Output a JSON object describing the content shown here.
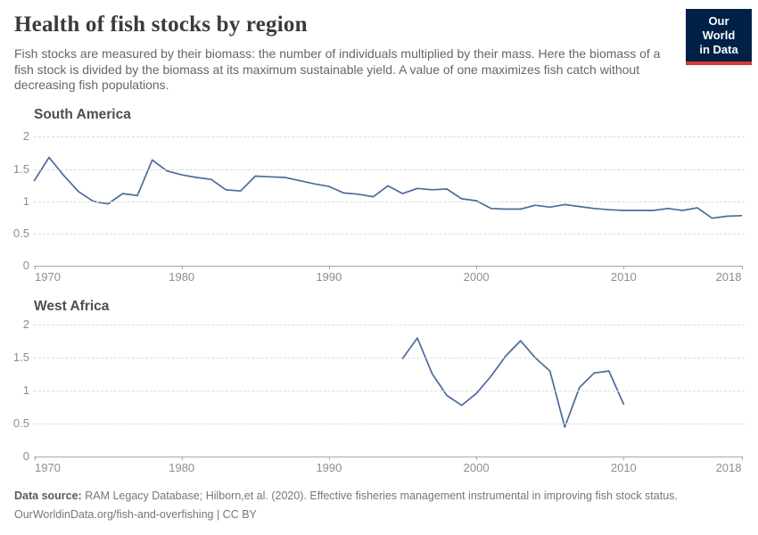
{
  "header": {
    "title": "Health of fish stocks by region",
    "subtitle": "Fish stocks are measured by their biomass: the number of individuals multiplied by their mass. Here the biomass of a fish stock is divided by the biomass at its maximum sustainable yield. A value of one maximizes fish catch without decreasing fish populations.",
    "logo": {
      "line1": "Our World",
      "line2": "in Data",
      "bg_color": "#002147",
      "accent_color": "#d73b33"
    }
  },
  "footer": {
    "datasource_label": "Data source:",
    "datasource_text": " RAM Legacy Database; Hilborn,et al. (2020). Effective fisheries management instrumental in improving fish stock status.",
    "link_line": "OurWorldinData.org/fish-and-overfishing | CC BY"
  },
  "chart_data": [
    {
      "type": "line",
      "title": "South America",
      "ylabel": "",
      "xlabel": "",
      "xlim": [
        1970,
        2018
      ],
      "ylim": [
        0,
        2
      ],
      "grid": "dashed-horizontal",
      "legend": "none",
      "line_color": "#4c6a9c",
      "yticks": [
        {
          "label": "2",
          "value": 2
        },
        {
          "label": "1.5",
          "value": 1.5
        },
        {
          "label": "1",
          "value": 1
        },
        {
          "label": "0.5",
          "value": 0.5
        },
        {
          "label": "0",
          "value": 0
        }
      ],
      "xticks": [
        {
          "label": "1970",
          "value": 1970
        },
        {
          "label": "1980",
          "value": 1980
        },
        {
          "label": "1990",
          "value": 1990
        },
        {
          "label": "2000",
          "value": 2000
        },
        {
          "label": "2010",
          "value": 2010
        },
        {
          "label": "2018",
          "value": 2018
        }
      ],
      "x": [
        1970,
        1971,
        1972,
        1973,
        1974,
        1975,
        1976,
        1977,
        1978,
        1979,
        1980,
        1981,
        1982,
        1983,
        1984,
        1985,
        1986,
        1987,
        1988,
        1989,
        1990,
        1991,
        1992,
        1993,
        1994,
        1995,
        1996,
        1997,
        1998,
        1999,
        2000,
        2001,
        2002,
        2003,
        2004,
        2005,
        2006,
        2007,
        2008,
        2009,
        2010,
        2011,
        2012,
        2013,
        2014,
        2015,
        2016,
        2017,
        2018
      ],
      "values": [
        1.32,
        1.68,
        1.4,
        1.15,
        1.0,
        0.96,
        1.12,
        1.09,
        1.64,
        1.47,
        1.41,
        1.37,
        1.34,
        1.18,
        1.16,
        1.39,
        1.38,
        1.37,
        1.32,
        1.27,
        1.23,
        1.13,
        1.11,
        1.07,
        1.24,
        1.12,
        1.2,
        1.18,
        1.19,
        1.04,
        1.01,
        0.89,
        0.88,
        0.88,
        0.94,
        0.91,
        0.95,
        0.92,
        0.89,
        0.87,
        0.86,
        0.86,
        0.86,
        0.89,
        0.86,
        0.9,
        0.74,
        0.77,
        0.78
      ]
    },
    {
      "type": "line",
      "title": "West Africa",
      "ylabel": "",
      "xlabel": "",
      "xlim": [
        1970,
        2018
      ],
      "ylim": [
        0,
        2
      ],
      "grid": "dashed-horizontal",
      "legend": "none",
      "line_color": "#4c6a9c",
      "yticks": [
        {
          "label": "2",
          "value": 2
        },
        {
          "label": "1.5",
          "value": 1.5
        },
        {
          "label": "1",
          "value": 1
        },
        {
          "label": "0.5",
          "value": 0.5
        },
        {
          "label": "0",
          "value": 0
        }
      ],
      "xticks": [
        {
          "label": "1970",
          "value": 1970
        },
        {
          "label": "1980",
          "value": 1980
        },
        {
          "label": "1990",
          "value": 1990
        },
        {
          "label": "2000",
          "value": 2000
        },
        {
          "label": "2010",
          "value": 2010
        },
        {
          "label": "2018",
          "value": 2018
        }
      ],
      "x": [
        1995,
        1996,
        1997,
        1998,
        1999,
        2000,
        2001,
        2002,
        2003,
        2004,
        2005,
        2006,
        2007,
        2008,
        2009,
        2010
      ],
      "values": [
        1.49,
        1.8,
        1.26,
        0.93,
        0.78,
        0.96,
        1.22,
        1.53,
        1.76,
        1.5,
        1.3,
        0.45,
        1.05,
        1.27,
        1.3,
        0.8
      ]
    }
  ]
}
